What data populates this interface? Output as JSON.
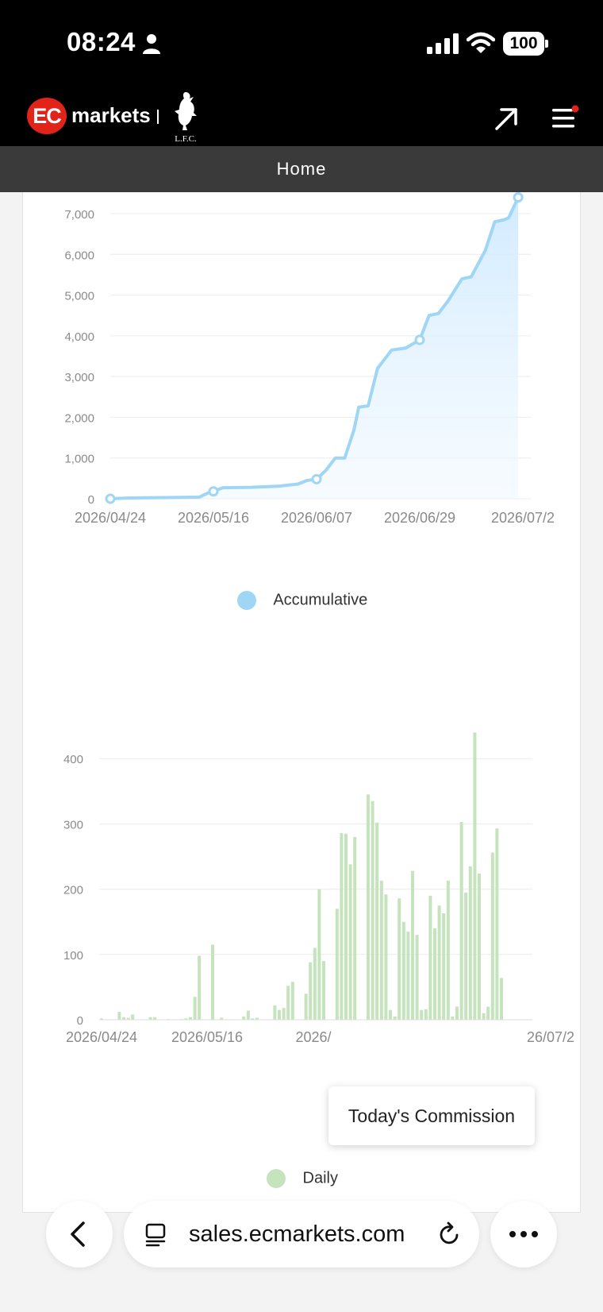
{
  "status_bar": {
    "time": "08:24",
    "battery": "100"
  },
  "header": {
    "logo_mark": "EC",
    "logo_text": "markets",
    "partner_logo": "L.F.C."
  },
  "nav": {
    "title": "Home"
  },
  "colors": {
    "accumulative": "#9fd6f5",
    "daily": "#c5e3bd",
    "brand_red": "#e2231a"
  },
  "chart_data": [
    {
      "type": "area",
      "title": "",
      "xlabel": "",
      "ylabel": "",
      "ylim": [
        0,
        7000
      ],
      "yticks": [
        "0",
        "1,000",
        "2,000",
        "3,000",
        "4,000",
        "5,000",
        "6,000",
        "7,000"
      ],
      "xticks": [
        "2026/04/24",
        "2026/05/16",
        "2026/06/07",
        "2026/06/29",
        "2026/07/2"
      ],
      "grid": true,
      "legend_placement": "bottom",
      "series": [
        {
          "name": "Accumulative",
          "points": [
            [
              "2026/04/24",
              0
            ],
            [
              "2026/04/28",
              20
            ],
            [
              "2026/05/06",
              30
            ],
            [
              "2026/05/13",
              40
            ],
            [
              "2026/05/15",
              150
            ],
            [
              "2026/05/16",
              180
            ],
            [
              "2026/05/18",
              270
            ],
            [
              "2026/05/24",
              280
            ],
            [
              "2026/05/30",
              310
            ],
            [
              "2026/06/03",
              360
            ],
            [
              "2026/06/05",
              450
            ],
            [
              "2026/06/07",
              480
            ],
            [
              "2026/06/09",
              700
            ],
            [
              "2026/06/11",
              1000
            ],
            [
              "2026/06/13",
              1000
            ],
            [
              "2026/06/15",
              1700
            ],
            [
              "2026/06/16",
              2250
            ],
            [
              "2026/06/18",
              2280
            ],
            [
              "2026/06/20",
              3200
            ],
            [
              "2026/06/23",
              3650
            ],
            [
              "2026/06/26",
              3700
            ],
            [
              "2026/06/29",
              3900
            ],
            [
              "2026/07/01",
              4500
            ],
            [
              "2026/07/03",
              4550
            ],
            [
              "2026/07/05",
              4850
            ],
            [
              "2026/07/08",
              5400
            ],
            [
              "2026/07/10",
              5450
            ],
            [
              "2026/07/13",
              6100
            ],
            [
              "2026/07/15",
              6800
            ],
            [
              "2026/07/17",
              6850
            ],
            [
              "2026/07/18",
              6900
            ],
            [
              "2026/07/20",
              7400
            ]
          ]
        }
      ]
    },
    {
      "type": "bar",
      "title": "",
      "xlabel": "",
      "ylabel": "",
      "ylim": [
        0,
        500
      ],
      "yticks": [
        "0",
        "100",
        "200",
        "300",
        "400",
        "500"
      ],
      "xticks": [
        "2026/04/24",
        "2026/05/16",
        "2026/",
        "26/07/2"
      ],
      "grid": true,
      "legend_placement": "bottom",
      "series": [
        {
          "name": "Daily",
          "values": [
            2,
            0,
            0,
            0,
            12,
            4,
            3,
            8,
            0,
            0,
            0,
            4,
            4,
            0,
            0,
            1,
            0,
            0,
            1,
            2,
            4,
            35,
            98,
            0,
            0,
            115,
            0,
            3,
            0,
            0,
            0,
            0,
            5,
            14,
            2,
            3,
            0,
            0,
            0,
            22,
            15,
            18,
            52,
            58,
            0,
            0,
            40,
            88,
            110,
            200,
            90,
            0,
            0,
            170,
            286,
            285,
            238,
            280,
            0,
            0,
            345,
            335,
            302,
            213,
            192,
            15,
            5,
            186,
            150,
            135,
            228,
            130,
            15,
            16,
            190,
            140,
            175,
            163,
            213,
            5,
            20,
            303,
            195,
            235,
            440,
            224,
            10,
            20,
            256,
            293,
            64
          ]
        }
      ]
    }
  ],
  "tooltip": {
    "text": "Today's Commission"
  },
  "browser": {
    "url": "sales.ecmarkets.com"
  }
}
